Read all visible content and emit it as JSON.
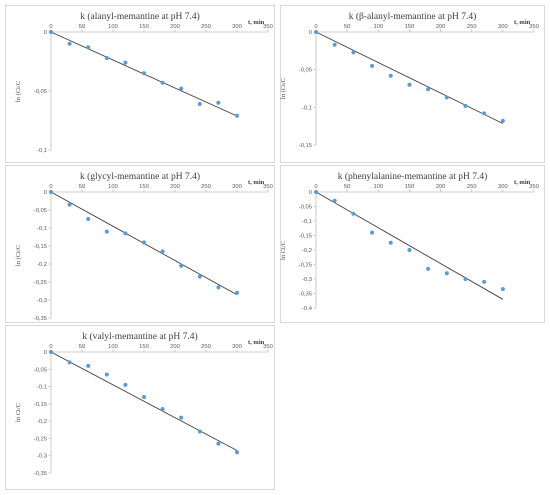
{
  "chart_data": [
    {
      "type": "scatter",
      "title": "k (alanyl-memantine at pH 7.4)",
      "xlabel": "t, min",
      "ylabel": "ln (Ct/C",
      "xlim": [
        0,
        350
      ],
      "ylim": [
        -0.1,
        0
      ],
      "xticks": [
        "0",
        "50",
        "100",
        "150",
        "200",
        "250",
        "300",
        "350"
      ],
      "yticks": [
        "0",
        "-0,05",
        "-0,1"
      ],
      "x": [
        0,
        30,
        60,
        90,
        120,
        150,
        180,
        210,
        240,
        270,
        300
      ],
      "y": [
        0,
        -0.01,
        -0.013,
        -0.022,
        -0.026,
        -0.035,
        -0.043,
        -0.048,
        -0.061,
        -0.06,
        -0.071
      ],
      "trendline": {
        "x": [
          0,
          300
        ],
        "y": [
          0,
          -0.0712
        ]
      },
      "colors": {
        "points": "#5b9bd5",
        "trendline": "#404040"
      }
    },
    {
      "type": "scatter",
      "title": "k (β-alanyl-memantine at pH 7.4)",
      "xlabel": "t, min",
      "ylabel": "ln (Ct/C",
      "xlim": [
        0,
        350
      ],
      "ylim": [
        -0.15,
        0
      ],
      "xticks": [
        "0",
        "50",
        "100",
        "150",
        "200",
        "250",
        "300",
        "350"
      ],
      "yticks": [
        "0",
        "-0,05",
        "-0,1",
        "-0,15"
      ],
      "x": [
        0,
        30,
        60,
        90,
        120,
        150,
        180,
        210,
        240,
        270,
        300
      ],
      "y": [
        0,
        -0.017,
        -0.027,
        -0.045,
        -0.058,
        -0.07,
        -0.076,
        -0.087,
        -0.098,
        -0.108,
        -0.118
      ],
      "trendline": {
        "x": [
          0,
          300
        ],
        "y": [
          0,
          -0.1215
        ]
      },
      "colors": {
        "points": "#5b9bd5",
        "trendline": "#404040"
      }
    },
    {
      "type": "scatter",
      "title": "k (glycyl-memantine at pH 7.4)",
      "xlabel": "t, min",
      "ylabel": "ln (Ct/C",
      "xlim": [
        0,
        350
      ],
      "ylim": [
        -0.35,
        0
      ],
      "xticks": [
        "0",
        "50",
        "100",
        "150",
        "200",
        "250",
        "300",
        "350"
      ],
      "yticks": [
        "0",
        "-0,05",
        "-0,1",
        "-0,15",
        "-0,2",
        "-0,25",
        "-0,3",
        "-0,35"
      ],
      "x": [
        0,
        30,
        60,
        90,
        120,
        150,
        180,
        210,
        240,
        270,
        300
      ],
      "y": [
        0,
        -0.035,
        -0.075,
        -0.11,
        -0.115,
        -0.14,
        -0.165,
        -0.205,
        -0.235,
        -0.265,
        -0.28
      ],
      "trendline": {
        "x": [
          0,
          300
        ],
        "y": [
          0,
          -0.2855
        ]
      },
      "colors": {
        "points": "#5b9bd5",
        "trendline": "#404040"
      }
    },
    {
      "type": "scatter",
      "title": "k (phenylalanine-memantine at pH 7.4)",
      "xlabel": "t, min",
      "ylabel": "ln Ct/C",
      "xlim": [
        0,
        350
      ],
      "ylim": [
        -0.4,
        0
      ],
      "xticks": [
        "0",
        "50",
        "100",
        "150",
        "200",
        "250",
        "300",
        "350"
      ],
      "yticks": [
        "0",
        "-0,05",
        "-0,1",
        "-0,15",
        "-0,2",
        "-0,25",
        "-0,3",
        "-0,35",
        "-0,4"
      ],
      "x": [
        0,
        30,
        60,
        90,
        120,
        150,
        180,
        210,
        240,
        270,
        300
      ],
      "y": [
        0,
        -0.03,
        -0.075,
        -0.14,
        -0.175,
        -0.2,
        -0.265,
        -0.28,
        -0.3,
        -0.31,
        -0.335
      ],
      "trendline": {
        "x": [
          0,
          300
        ],
        "y": [
          0,
          -0.37
        ]
      },
      "colors": {
        "points": "#5b9bd5",
        "trendline": "#404040"
      }
    },
    {
      "type": "scatter",
      "title": "k (valyl-memantine at pH 7.4)",
      "xlabel": "t, min",
      "ylabel": "ln Ct/C",
      "xlim": [
        0,
        350
      ],
      "ylim": [
        -0.35,
        0
      ],
      "xticks": [
        "0",
        "50",
        "100",
        "150",
        "200",
        "250",
        "300",
        "350"
      ],
      "yticks": [
        "0",
        "-0,05",
        "-0,1",
        "-0,15",
        "-0,2",
        "-0,25",
        "-0,3",
        "-0,35"
      ],
      "x": [
        0,
        30,
        60,
        90,
        120,
        150,
        180,
        210,
        240,
        270,
        300
      ],
      "y": [
        0,
        -0.03,
        -0.04,
        -0.065,
        -0.095,
        -0.13,
        -0.165,
        -0.19,
        -0.23,
        -0.265,
        -0.29
      ],
      "trendline": {
        "x": [
          0,
          300
        ],
        "y": [
          0,
          -0.285
        ]
      },
      "colors": {
        "points": "#5b9bd5",
        "trendline": "#404040"
      }
    }
  ]
}
